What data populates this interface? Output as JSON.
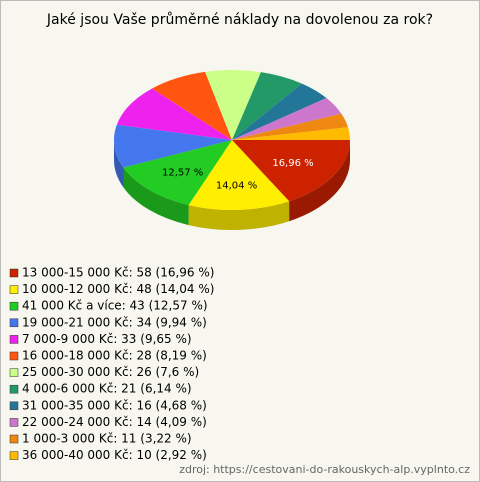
{
  "chart_data": {
    "type": "pie",
    "title": "Jaké jsou Vaše průměrné náklady na dovolenou za rok?",
    "categories": [
      "13 000-15 000 Kč",
      "10 000-12 000 Kč",
      "41 000 Kč a více",
      "19 000-21 000 Kč",
      "7 000-9 000 Kč",
      "16 000-18 000 Kč",
      "25 000-30 000 Kč",
      "4 000-6 000 Kč",
      "31 000-35 000 Kč",
      "22 000-24 000 Kč",
      "1 000-3 000 Kč",
      "36 000-40 000 Kč"
    ],
    "values": [
      58,
      48,
      43,
      34,
      33,
      28,
      26,
      21,
      16,
      14,
      11,
      10
    ],
    "percent": [
      16.96,
      14.04,
      12.57,
      9.94,
      9.65,
      8.19,
      7.6,
      6.14,
      4.68,
      4.09,
      3.22,
      2.92
    ],
    "percent_labels": [
      "16,96 %",
      "14,04 %",
      "12,57 %",
      null,
      null,
      null,
      null,
      null,
      null,
      null,
      null,
      null
    ],
    "legend": [
      "13 000-15 000 Kč: 58 (16,96 %)",
      "10 000-12 000 Kč: 48 (14,04 %)",
      "41 000 Kč a více: 43 (12,57 %)",
      "19 000-21 000 Kč: 34 (9,94 %)",
      "7 000-9 000 Kč: 33 (9,65 %)",
      "16 000-18 000 Kč: 28 (8,19 %)",
      "25 000-30 000 Kč: 26 (7,6 %)",
      "4 000-6 000 Kč: 21 (6,14 %)",
      "31 000-35 000 Kč: 16 (4,68 %)",
      "22 000-24 000 Kč: 14 (4,09 %)",
      "1 000-3 000 Kč: 11 (3,22 %)",
      "36 000-40 000 Kč: 10 (2,92 %)"
    ],
    "colors": [
      "#cc2200",
      "#ffee00",
      "#22cc22",
      "#4477ee",
      "#ee22ee",
      "#ff5511",
      "#ccff88",
      "#229966",
      "#227799",
      "#cc77cc",
      "#ee8811",
      "#ffbb00"
    ],
    "source": "zdroj: https://cestovani-do-rakouskych-alp.vyplnto.cz"
  }
}
